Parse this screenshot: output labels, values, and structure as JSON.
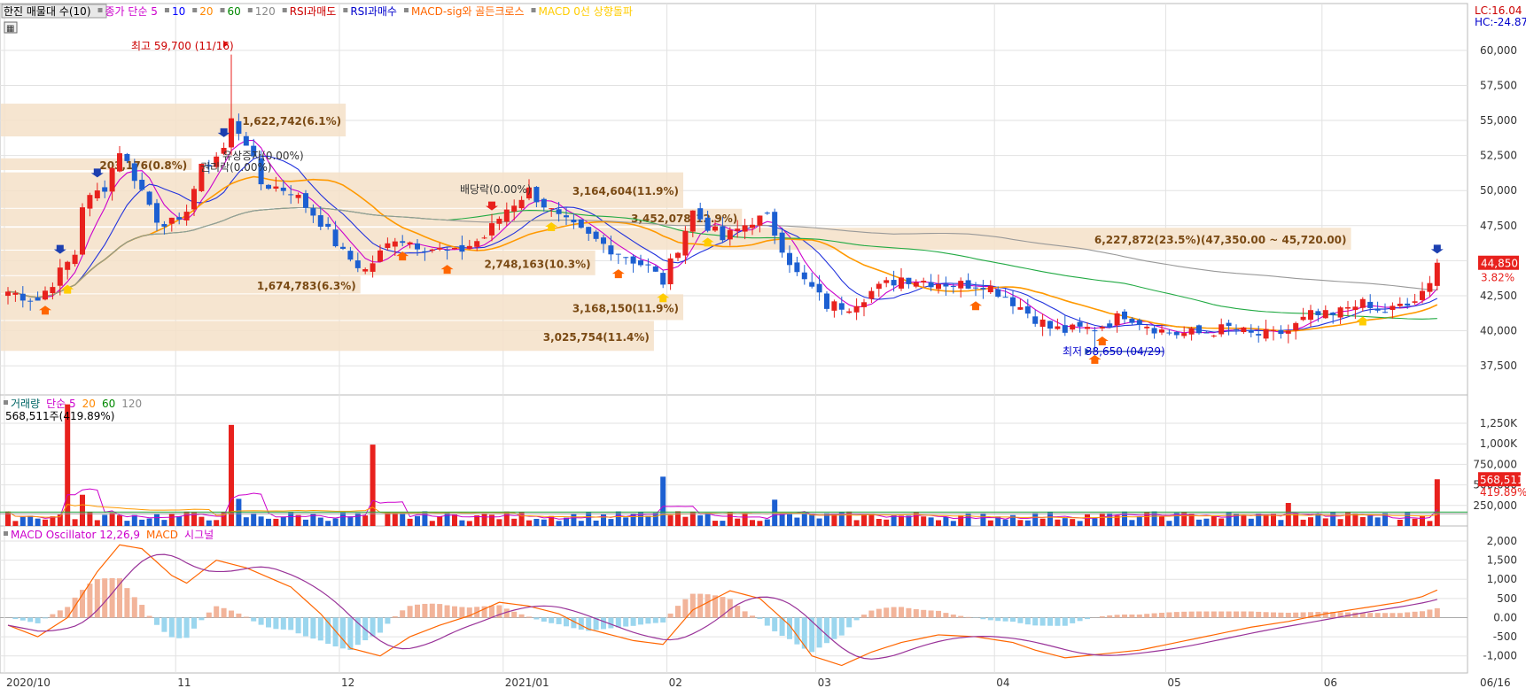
{
  "legend_price": [
    {
      "text": "한진 매물대 수(10)",
      "color": "#000000"
    },
    {
      "text": "종가 단순 5",
      "color": "#cc00cc"
    },
    {
      "text": "10",
      "color": "#0000ff"
    },
    {
      "text": "20",
      "color": "#ff8800"
    },
    {
      "text": "60",
      "color": "#008800"
    },
    {
      "text": "120",
      "color": "#888888"
    },
    {
      "text": "RSI과매도",
      "color": "#cc0000"
    },
    {
      "text": "RSI과매수",
      "color": "#0000cc"
    },
    {
      "text": "MACD-sig와 골든크로스",
      "color": "#ff6600"
    },
    {
      "text": "MACD 0선 상향돌파",
      "color": "#ffcc00"
    }
  ],
  "top_right": {
    "lc": "LC:16.04",
    "hc": "HC:-24.87"
  },
  "price_ticks": [
    "60,000",
    "57,500",
    "55,000",
    "52,500",
    "50,000",
    "47,500",
    "45,000",
    "42,500",
    "40,000",
    "37,500"
  ],
  "price_tick_values": [
    60000,
    57500,
    55000,
    52500,
    50000,
    47500,
    45000,
    42500,
    40000,
    37500
  ],
  "price_range": [
    35800,
    61700
  ],
  "current_price": {
    "label": "44,850",
    "pct": "3.82%",
    "value": 44850
  },
  "annotations": {
    "high": "최고 59,700 (11/16)",
    "low": "최저 38,650 (04/29)",
    "rights": "유상증자(0.00%)",
    "rights2": "권리락(0.00%)",
    "dividend": "배당락(0.00%)"
  },
  "volume_profile": [
    {
      "label": "203,176(0.8%)",
      "low": 51400,
      "high": 52300,
      "w": 0.13
    },
    {
      "label": "1,622,742(6.1%)",
      "low": 53800,
      "high": 56200,
      "w": 0.235
    },
    {
      "label": "3,164,604(11.9%)",
      "low": 48700,
      "high": 51300,
      "w": 0.465
    },
    {
      "label": "3,452,078(12.9%)",
      "low": 47400,
      "high": 48700,
      "w": 0.505
    },
    {
      "label": "6,227,872(23.5%)(47,350.00 ~ 45,720.00)",
      "low": 45720,
      "high": 47350,
      "w": 0.92
    },
    {
      "label": "2,748,163(10.3%)",
      "low": 43900,
      "high": 45720,
      "w": 0.405
    },
    {
      "label": "1,674,783(6.3%)",
      "low": 42600,
      "high": 43900,
      "w": 0.245
    },
    {
      "label": "3,168,150(11.9%)",
      "low": 40700,
      "high": 42600,
      "w": 0.465
    },
    {
      "label": "3,025,754(11.4%)",
      "low": 38500,
      "high": 40700,
      "w": 0.445
    }
  ],
  "volume_legend": [
    {
      "text": "거래량",
      "color": "#006666"
    },
    {
      "text": "단순 5",
      "color": "#cc00cc"
    },
    {
      "text": "20",
      "color": "#ff8800"
    },
    {
      "text": "60",
      "color": "#008800"
    },
    {
      "text": "120",
      "color": "#888888"
    }
  ],
  "volume_info": "568,511주(419.89%)",
  "volume_ticks": [
    "1,250K",
    "1,000K",
    "750,000",
    "500,000",
    "250,000"
  ],
  "volume_tick_values": [
    1250000,
    1000000,
    750000,
    500000,
    250000
  ],
  "volume_range": [
    0,
    1530000
  ],
  "volume_current": {
    "label": "568,511",
    "pct": "419.89%",
    "value": 568511
  },
  "macd_legend": [
    {
      "text": "MACD Oscillator 12,26,9",
      "color": "#cc00cc"
    },
    {
      "text": "MACD",
      "color": "#ff6600"
    },
    {
      "text": "시그널",
      "color": "#cc00cc"
    }
  ],
  "macd_ticks": [
    "2,000",
    "1,500",
    "1,000",
    "500",
    "0.00",
    "-500",
    "-1,000"
  ],
  "macd_tick_values": [
    2000,
    1500,
    1000,
    500,
    0,
    -500,
    -1000
  ],
  "macd_range": [
    -1400,
    2300
  ],
  "x_labels": [
    {
      "text": "2020/10",
      "i": 0
    },
    {
      "text": "11",
      "i": 23
    },
    {
      "text": "12",
      "i": 45
    },
    {
      "text": "2021/01",
      "i": 67
    },
    {
      "text": "02",
      "i": 89
    },
    {
      "text": "03",
      "i": 109
    },
    {
      "text": "04",
      "i": 133
    },
    {
      "text": "05",
      "i": 156
    },
    {
      "text": "06",
      "i": 177
    },
    {
      "text": "06/16",
      "i": 194
    }
  ],
  "chart_data": {
    "type": "candlestick",
    "title": "",
    "series": [
      {
        "name": "한진",
        "close_anchors": [
          [
            0,
            42800
          ],
          [
            4,
            42200
          ],
          [
            6,
            43500
          ],
          [
            9,
            45500
          ],
          [
            10,
            49000
          ],
          [
            13,
            50300
          ],
          [
            15,
            52900
          ],
          [
            17,
            51000
          ],
          [
            20,
            48000
          ],
          [
            23,
            47500
          ],
          [
            26,
            51500
          ],
          [
            29,
            53000
          ],
          [
            30,
            55000
          ],
          [
            32,
            53500
          ],
          [
            34,
            50500
          ],
          [
            38,
            50000
          ],
          [
            42,
            47800
          ],
          [
            45,
            45500
          ],
          [
            48,
            44300
          ],
          [
            52,
            46700
          ],
          [
            56,
            46000
          ],
          [
            60,
            45500
          ],
          [
            64,
            46700
          ],
          [
            67,
            48700
          ],
          [
            70,
            50000
          ],
          [
            74,
            48000
          ],
          [
            78,
            46700
          ],
          [
            82,
            45600
          ],
          [
            86,
            44500
          ],
          [
            88,
            43500
          ],
          [
            90,
            46000
          ],
          [
            92,
            48500
          ],
          [
            96,
            46500
          ],
          [
            100,
            47900
          ],
          [
            102,
            48000
          ],
          [
            104,
            46000
          ],
          [
            106,
            44000
          ],
          [
            108,
            43000
          ],
          [
            110,
            41800
          ],
          [
            113,
            41800
          ],
          [
            116,
            42800
          ],
          [
            120,
            43800
          ],
          [
            124,
            43500
          ],
          [
            128,
            43300
          ],
          [
            131,
            43400
          ],
          [
            134,
            42500
          ],
          [
            137,
            41300
          ],
          [
            140,
            40200
          ],
          [
            142,
            40000
          ],
          [
            146,
            40200
          ],
          [
            148,
            40600
          ],
          [
            150,
            41200
          ],
          [
            152,
            40700
          ],
          [
            155,
            40000
          ],
          [
            157,
            39800
          ],
          [
            160,
            39800
          ],
          [
            164,
            40200
          ],
          [
            167,
            39700
          ],
          [
            170,
            39700
          ],
          [
            172,
            40000
          ],
          [
            175,
            41100
          ],
          [
            178,
            41000
          ],
          [
            181,
            42100
          ],
          [
            184,
            41300
          ],
          [
            188,
            41800
          ],
          [
            190,
            42500
          ],
          [
            191,
            43200
          ],
          [
            192,
            44850
          ]
        ]
      }
    ],
    "macd_anchors": [
      [
        0,
        -200
      ],
      [
        4,
        -500
      ],
      [
        8,
        0
      ],
      [
        12,
        1200
      ],
      [
        15,
        1900
      ],
      [
        18,
        1800
      ],
      [
        22,
        1100
      ],
      [
        24,
        900
      ],
      [
        28,
        1500
      ],
      [
        32,
        1300
      ],
      [
        38,
        800
      ],
      [
        42,
        100
      ],
      [
        46,
        -800
      ],
      [
        50,
        -1000
      ],
      [
        54,
        -500
      ],
      [
        58,
        -200
      ],
      [
        62,
        50
      ],
      [
        66,
        400
      ],
      [
        70,
        300
      ],
      [
        74,
        100
      ],
      [
        78,
        -300
      ],
      [
        84,
        -600
      ],
      [
        88,
        -700
      ],
      [
        92,
        200
      ],
      [
        97,
        700
      ],
      [
        101,
        500
      ],
      [
        105,
        -200
      ],
      [
        108,
        -1000
      ],
      [
        112,
        -1250
      ],
      [
        116,
        -900
      ],
      [
        120,
        -650
      ],
      [
        125,
        -450
      ],
      [
        130,
        -500
      ],
      [
        135,
        -650
      ],
      [
        138,
        -850
      ],
      [
        142,
        -1050
      ],
      [
        147,
        -950
      ],
      [
        152,
        -850
      ],
      [
        157,
        -650
      ],
      [
        162,
        -450
      ],
      [
        167,
        -250
      ],
      [
        172,
        -100
      ],
      [
        177,
        100
      ],
      [
        182,
        250
      ],
      [
        187,
        400
      ],
      [
        190,
        550
      ],
      [
        192,
        720
      ]
    ],
    "ma_periods": [
      5,
      10,
      20,
      60,
      120
    ],
    "grid": true
  }
}
